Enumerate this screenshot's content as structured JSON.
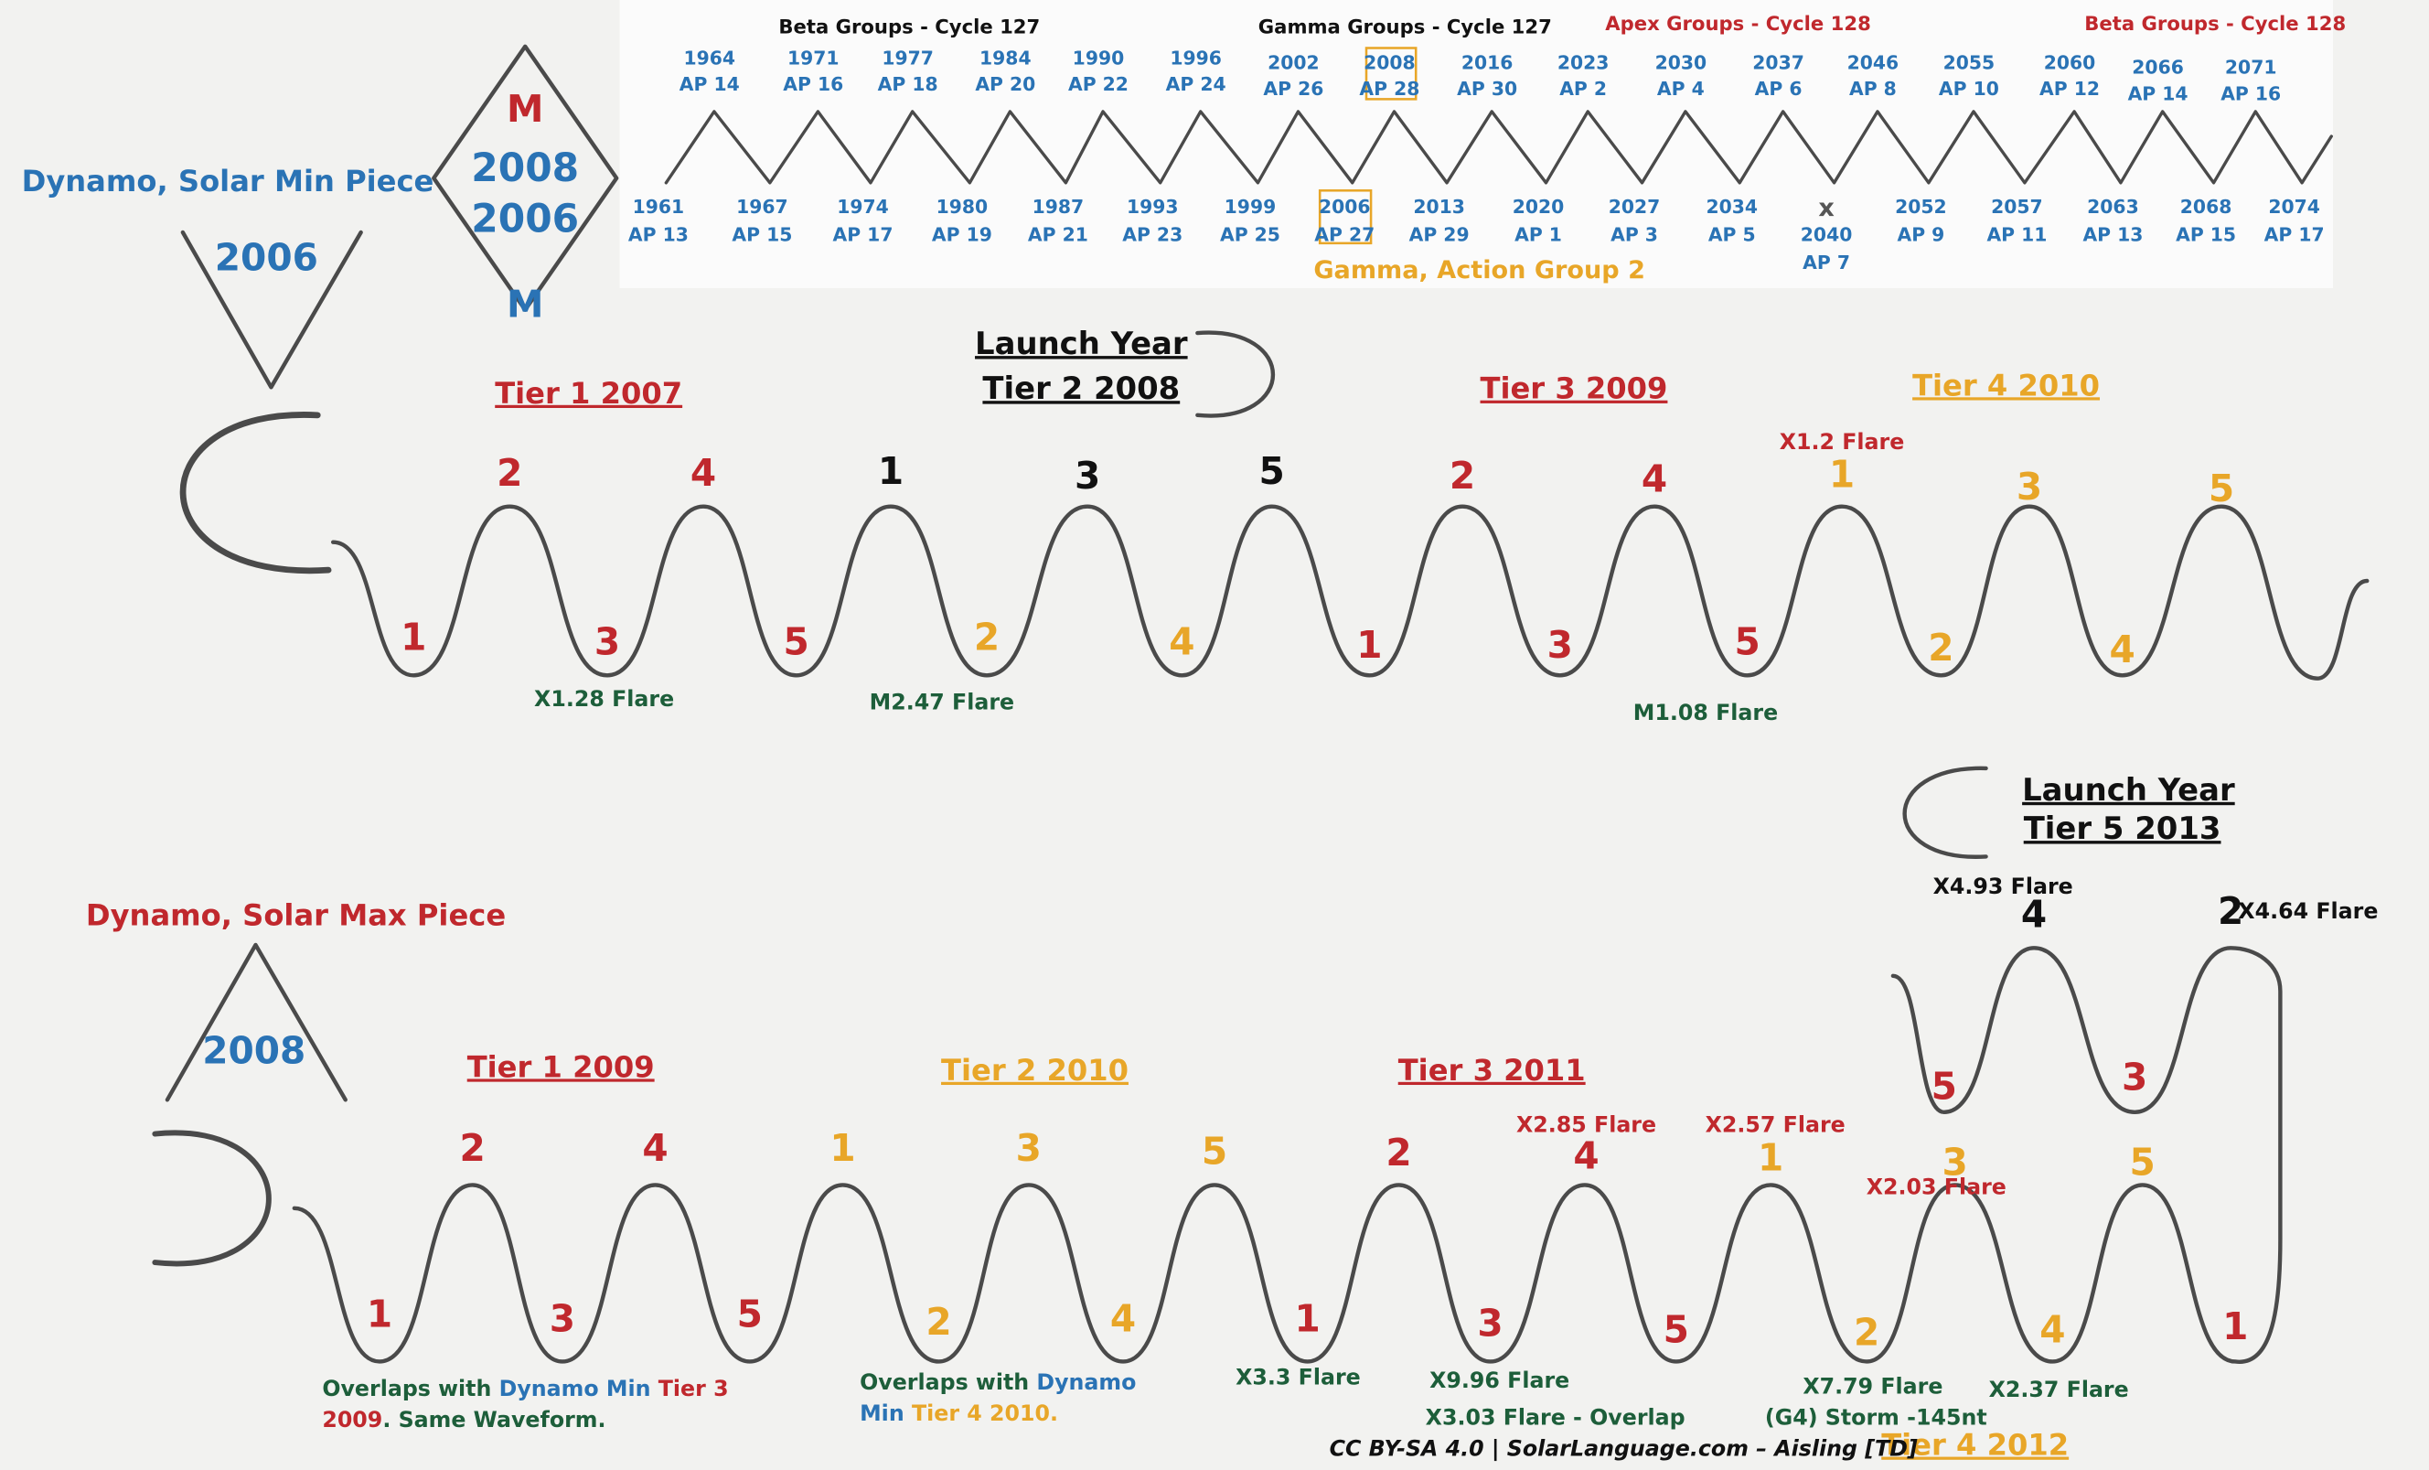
{
  "timeline": {
    "headers": [
      "Beta Groups - Cycle 127",
      "Gamma Groups - Cycle 127",
      "Apex Groups - Cycle 128",
      "Beta Groups - Cycle 128"
    ],
    "peaks": [
      {
        "year": "1964",
        "group": "AP 14"
      },
      {
        "year": "1971",
        "group": "AP 16"
      },
      {
        "year": "1977",
        "group": "AP 18"
      },
      {
        "year": "1984",
        "group": "AP 20"
      },
      {
        "year": "1990",
        "group": "AP 22"
      },
      {
        "year": "1996",
        "group": "AP 24"
      },
      {
        "year": "2002",
        "group": "AP 26"
      },
      {
        "year": "2008",
        "group": "AP 28"
      },
      {
        "year": "2016",
        "group": "AP 30"
      },
      {
        "year": "2023",
        "group": "AP 2"
      },
      {
        "year": "2030",
        "group": "AP 4"
      },
      {
        "year": "2037",
        "group": "AP 6"
      },
      {
        "year": "2046",
        "group": "AP 8"
      },
      {
        "year": "2055",
        "group": "AP 10"
      },
      {
        "year": "2060",
        "group": "AP 12"
      },
      {
        "year": "2066",
        "group": "AP 14"
      },
      {
        "year": "2071",
        "group": "AP 16"
      }
    ],
    "troughs": [
      {
        "year": "1961",
        "group": "AP 13"
      },
      {
        "year": "1967",
        "group": "AP 15"
      },
      {
        "year": "1974",
        "group": "AP 17"
      },
      {
        "year": "1980",
        "group": "AP 19"
      },
      {
        "year": "1987",
        "group": "AP 21"
      },
      {
        "year": "1993",
        "group": "AP 23"
      },
      {
        "year": "1999",
        "group": "AP 25"
      },
      {
        "year": "2006",
        "group": "AP 27"
      },
      {
        "year": "2013",
        "group": "AP 29"
      },
      {
        "year": "2020",
        "group": "AP 1"
      },
      {
        "year": "2027",
        "group": "AP 3"
      },
      {
        "year": "2034",
        "group": "AP 5"
      },
      {
        "mark": "x",
        "year": "2040",
        "group": "AP 7"
      },
      {
        "year": "2052",
        "group": "AP 9"
      },
      {
        "year": "2057",
        "group": "AP 11"
      },
      {
        "year": "2063",
        "group": "AP 13"
      },
      {
        "year": "2068",
        "group": "AP 15"
      },
      {
        "year": "2074",
        "group": "AP 17"
      }
    ],
    "note": "Gamma, Action Group 2"
  },
  "min_piece": {
    "title": "Dynamo, Solar Min Piece",
    "symbol_year": "2006",
    "diamond": {
      "top": "M",
      "year_1": "2008",
      "year_2": "2006",
      "bottom": "M"
    },
    "launch": {
      "label": "Launch Year",
      "tier": "Tier 2 2008"
    },
    "tiers": [
      "Tier 1 2007",
      "Tier 3 2009",
      "Tier 4 2010"
    ],
    "peak_labels": [
      "2",
      "4",
      "1",
      "3",
      "5",
      "2",
      "4",
      "1",
      "3",
      "5"
    ],
    "trough_labels": [
      "1",
      "3",
      "5",
      "2",
      "4",
      "1",
      "3",
      "5",
      "2",
      "4"
    ],
    "flares": [
      "X1.28 Flare",
      "M2.47 Flare",
      "M1.08 Flare",
      "X1.2 Flare"
    ]
  },
  "max_piece": {
    "title": "Dynamo, Solar Max Piece",
    "symbol_year": "2008",
    "launch": {
      "label": "Launch Year",
      "tier": "Tier 5 2013"
    },
    "tiers": [
      "Tier 1 2009",
      "Tier 2 2010",
      "Tier 3 2011",
      "Tier 4 2012"
    ],
    "peak_labels": [
      "2",
      "4",
      "1",
      "3",
      "5",
      "2",
      "4",
      "1",
      "3",
      "5",
      "2",
      "4"
    ],
    "trough_labels": [
      "1",
      "3",
      "5",
      "2",
      "4",
      "1",
      "3",
      "5",
      "2",
      "4",
      "1",
      "3",
      "5"
    ],
    "flares": [
      "X4.93 Flare",
      "X4.64 Flare",
      "X2.85 Flare",
      "X2.57 Flare",
      "X2.03 Flare",
      "X3.3 Flare",
      "X9.96 Flare",
      "X3.03 Flare - Overlap",
      "X7.79 Flare",
      "(G4) Storm -145nt",
      "X2.37 Flare"
    ],
    "notes": [
      {
        "lines": [
          [
            "Overlaps with ",
            "Dynamo Min",
            " Tier 3"
          ],
          [
            "2009",
            ". Same Waveform."
          ]
        ]
      },
      {
        "lines": [
          [
            "Overlaps with ",
            "Dynamo"
          ],
          [
            "Min",
            " Tier 4 2010."
          ]
        ]
      }
    ]
  },
  "credit": "CC BY-SA 4.0 | SolarLanguage.com – Aisling [TD]"
}
